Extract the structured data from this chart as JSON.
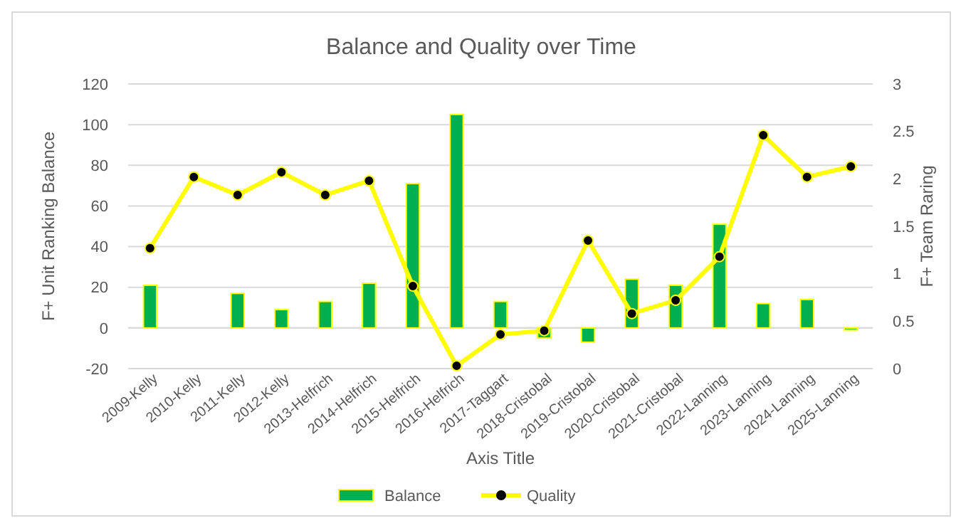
{
  "chart_data": {
    "type": "bar",
    "title": "Balance and Quality over Time",
    "xlabel": "Axis Title",
    "ylabel": "F+ Unit Ranking Balance",
    "y2label": "F+ Team Raring",
    "categories": [
      "2009-Kelly",
      "2010-Kelly",
      "2011-Kelly",
      "2012-Kelly",
      "2013-Helfrich",
      "2014-Helfrich",
      "2015-Helfrich",
      "2016-Helfrich",
      "2017-Taggart",
      "2018-Cristobal",
      "2019-Cristobal",
      "2020-Cristobal",
      "2021-Cristobal",
      "2022-Lanning",
      "2023-Lanning",
      "2024-Lanning",
      "2025-Lanning"
    ],
    "series": [
      {
        "name": "Balance",
        "color": "#00b050",
        "values": [
          21,
          null,
          17,
          9,
          13,
          22,
          71,
          105,
          13,
          -5,
          -7,
          24,
          21,
          51,
          12,
          14,
          -1
        ]
      },
      {
        "name": "Quality",
        "type": "line",
        "axis": "y2",
        "color": "#ffff00",
        "marker": "circle",
        "values": [
          1.27,
          2.02,
          1.83,
          2.07,
          1.83,
          1.98,
          0.87,
          0.03,
          0.36,
          0.4,
          1.35,
          0.58,
          0.72,
          1.18,
          2.46,
          2.02,
          2.13
        ]
      }
    ],
    "ylim": [
      -20,
      120
    ],
    "yticks": [
      -20,
      0,
      20,
      40,
      60,
      80,
      100,
      120
    ],
    "y2lim": [
      0,
      3
    ],
    "y2ticks": [
      0,
      0.5,
      1,
      1.5,
      2,
      2.5,
      3
    ],
    "grid": "y",
    "legend": "bottom"
  }
}
